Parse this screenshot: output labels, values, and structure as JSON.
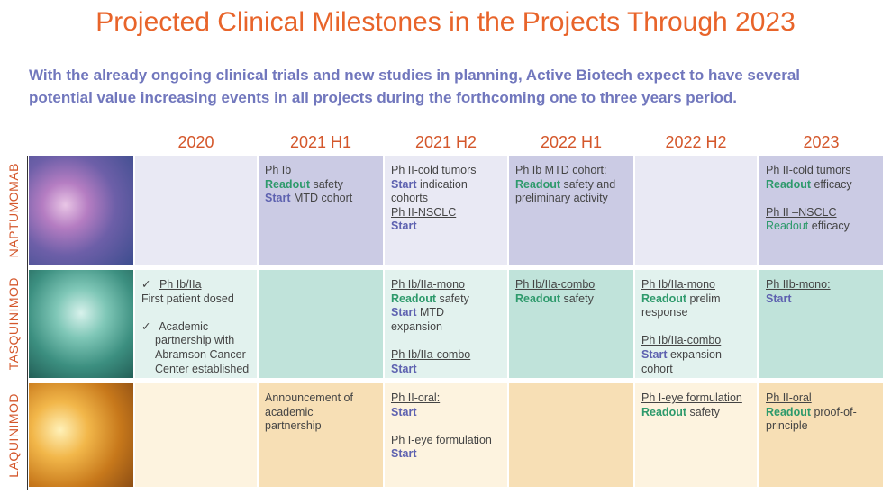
{
  "header": {
    "title": "Projected Clinical Milestones in the Projects Through 2023",
    "subtitle": [
      "With the already ongoing clinical trials and new studies in planning, Active Biotech expect to have several",
      "potential value increasing events in all projects during the forthcoming one to three years period."
    ]
  },
  "table": {
    "columns": [
      "2020",
      "2021 H1",
      "2021 H2",
      "2022 H1",
      "2022 H2",
      "2023"
    ],
    "rows": [
      {
        "label": "NAPTUMOMAB",
        "cells": [
          [],
          [
            [
              [
                [
                  "Ph Ib",
                  "u"
                ]
              ],
              [
                [
                  "Readout",
                  "r"
                ],
                [
                  "safety",
                  "p"
                ]
              ],
              [
                [
                  "Start",
                  "s"
                ],
                [
                  "MTD cohort",
                  "p"
                ]
              ]
            ]
          ],
          [
            [
              [
                [
                  "Ph II-cold tumors",
                  "u"
                ]
              ],
              [
                [
                  "Start",
                  "s"
                ],
                [
                  "indication",
                  "p"
                ]
              ],
              [
                [
                  "cohorts",
                  "p"
                ]
              ],
              [
                [
                  "Ph II-NSCLC",
                  "u"
                ]
              ],
              [
                [
                  "Start",
                  "s"
                ]
              ]
            ]
          ],
          [
            [
              [
                [
                  "Ph Ib MTD cohort:",
                  "u"
                ]
              ],
              [
                [
                  "Readout",
                  "r"
                ],
                [
                  "safety and",
                  "p"
                ]
              ],
              [
                [
                  "preliminary activity",
                  "p"
                ]
              ]
            ]
          ],
          [],
          [
            [
              [
                [
                  "Ph II-cold tumors",
                  "u"
                ]
              ],
              [
                [
                  "Readout",
                  "r"
                ],
                [
                  "efficacy",
                  "p"
                ]
              ]
            ],
            [
              [
                [
                  "Ph II –NSCLC",
                  "u"
                ]
              ],
              [
                [
                  "Readout",
                  "g"
                ],
                [
                  "efficacy",
                  "p"
                ]
              ]
            ]
          ]
        ]
      },
      {
        "label": "TASQUINIMOD",
        "cells": [
          [
            [
              [
                [
                  "✓",
                  "c"
                ],
                [
                  "Ph Ib/IIa",
                  "u"
                ]
              ],
              [
                [
                  "First patient dosed",
                  "p"
                ]
              ]
            ],
            [
              [
                [
                  "✓",
                  "c"
                ],
                [
                  "Academic",
                  "p"
                ]
              ],
              [
                [
                  "partnership with",
                  "i"
                ]
              ],
              [
                [
                  "Abramson Cancer",
                  "i"
                ]
              ],
              [
                [
                  "Center established",
                  "i"
                ]
              ]
            ]
          ],
          [],
          [
            [
              [
                [
                  "Ph Ib/IIa-mono",
                  "u"
                ]
              ],
              [
                [
                  "Readout",
                  "r"
                ],
                [
                  "safety",
                  "p"
                ]
              ],
              [
                [
                  "Start",
                  "s"
                ],
                [
                  "MTD",
                  "p"
                ]
              ],
              [
                [
                  "expansion",
                  "p"
                ]
              ]
            ],
            [
              [
                [
                  "Ph Ib/IIa-combo",
                  "u"
                ]
              ],
              [
                [
                  "Start",
                  "s"
                ]
              ]
            ]
          ],
          [
            [
              [
                [
                  "Ph Ib/IIa-combo",
                  "u"
                ]
              ],
              [
                [
                  "Readout",
                  "r"
                ],
                [
                  "safety",
                  "p"
                ]
              ]
            ]
          ],
          [
            [
              [
                [
                  "Ph Ib/IIa-mono",
                  "u"
                ]
              ],
              [
                [
                  "Readout",
                  "r"
                ],
                [
                  "prelim",
                  "p"
                ]
              ],
              [
                [
                  "response",
                  "p"
                ]
              ]
            ],
            [
              [
                [
                  "Ph Ib/IIa-combo",
                  "u"
                ]
              ],
              [
                [
                  "Start",
                  "s"
                ],
                [
                  "expansion",
                  "p"
                ]
              ],
              [
                [
                  "cohort",
                  "p"
                ]
              ]
            ]
          ],
          [
            [
              [
                [
                  "Ph IIb-mono:",
                  "u"
                ]
              ],
              [
                [
                  "Start",
                  "s"
                ]
              ]
            ]
          ]
        ]
      },
      {
        "label": "LAQUINIMOD",
        "cells": [
          [],
          [
            [
              [
                [
                  "Announcement of",
                  "p"
                ]
              ],
              [
                [
                  "academic",
                  "p"
                ]
              ],
              [
                [
                  "partnership",
                  "p"
                ]
              ]
            ]
          ],
          [
            [
              [
                [
                  "Ph II-oral:",
                  "u"
                ]
              ],
              [
                [
                  "Start",
                  "s"
                ]
              ]
            ],
            [
              [
                [
                  "Ph I-eye formulation",
                  "u"
                ]
              ],
              [
                [
                  "Start",
                  "s"
                ]
              ]
            ]
          ],
          [],
          [
            [
              [
                [
                  "Ph I-eye formulation",
                  "u"
                ]
              ],
              [
                [
                  "Readout",
                  "r"
                ],
                [
                  "safety",
                  "p"
                ]
              ]
            ]
          ],
          [
            [
              [
                [
                  "Ph II-oral",
                  "u"
                ]
              ],
              [
                [
                  "Readout",
                  "r"
                ],
                [
                  "proof-of-",
                  "p"
                ]
              ],
              [
                [
                  "principle",
                  "p"
                ]
              ]
            ]
          ]
        ]
      }
    ]
  }
}
